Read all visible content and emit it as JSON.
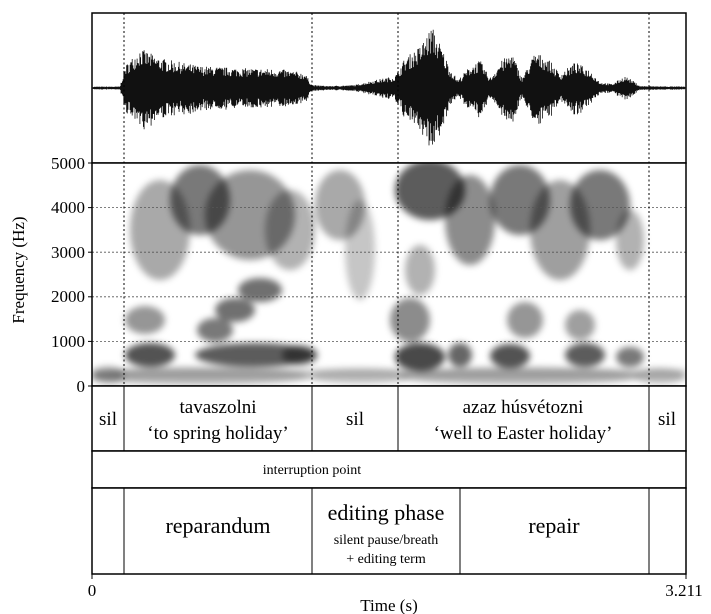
{
  "figure": {
    "y_axis_label": "Frequency (Hz)",
    "y_ticks": [
      "0",
      "1000",
      "2000",
      "3000",
      "4000",
      "5000"
    ],
    "x_axis_label": "Time (s)",
    "x_ticks": [
      "0",
      "3.211"
    ],
    "x_range_s": [
      0,
      3.211
    ],
    "y_range_hz": [
      0,
      5000
    ],
    "colors": {
      "ink": "#000000",
      "grid": "#555555",
      "background": "#ffffff"
    }
  },
  "tiers": {
    "words": [
      {
        "line1": "sil",
        "line2": ""
      },
      {
        "line1": "tavaszolni",
        "line2": "‘to spring holiday’"
      },
      {
        "line1": "sil",
        "line2": ""
      },
      {
        "line1": "azaz húsvétozni",
        "line2": "‘well to Easter holiday’"
      },
      {
        "line1": "sil",
        "line2": ""
      }
    ],
    "point": {
      "label": "interruption point"
    },
    "phases": [
      {
        "label": "",
        "sub1": "",
        "sub2": ""
      },
      {
        "label": "reparandum",
        "sub1": "",
        "sub2": ""
      },
      {
        "label": "editing phase",
        "sub1": "silent pause/breath",
        "sub2": "+ editing term"
      },
      {
        "label": "repair",
        "sub1": "",
        "sub2": ""
      },
      {
        "label": "",
        "sub1": "",
        "sub2": ""
      }
    ]
  }
}
